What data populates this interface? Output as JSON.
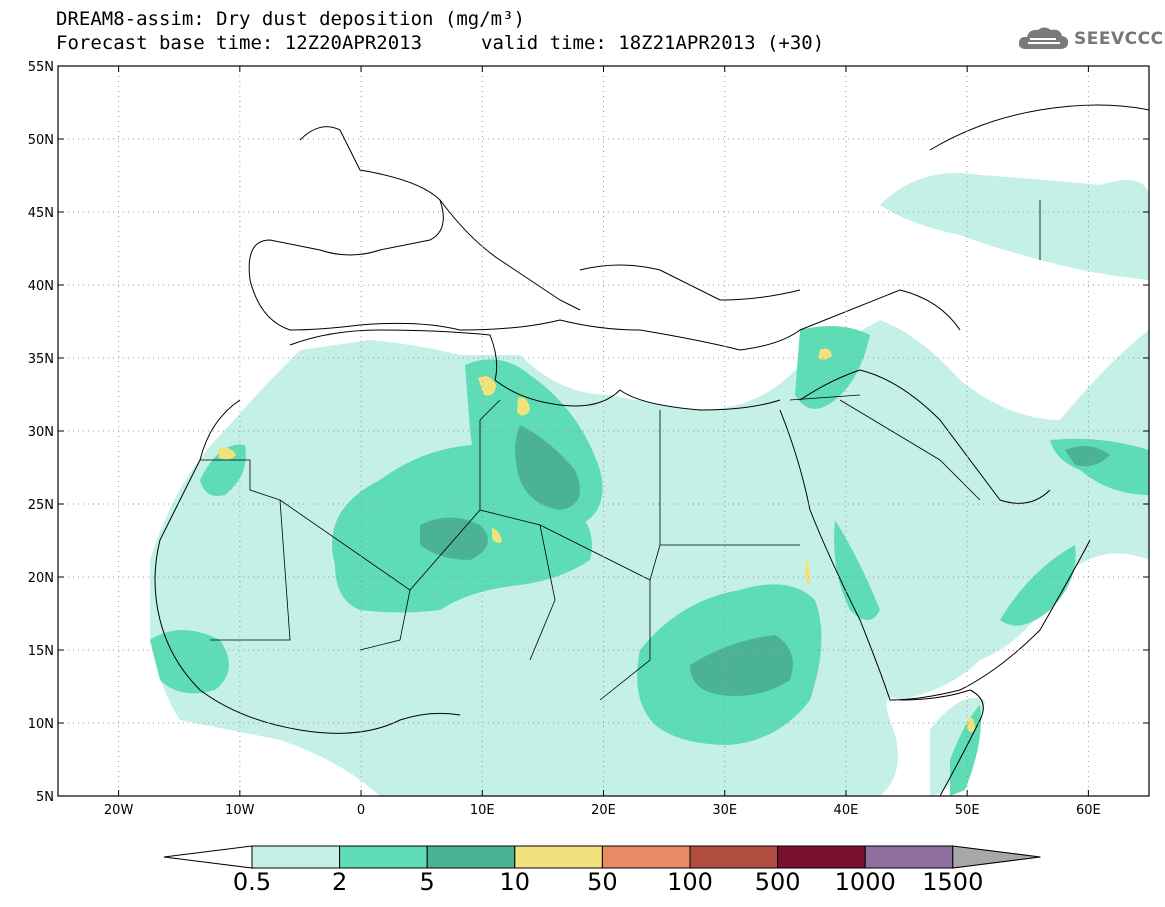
{
  "header": {
    "line1": "DREAM8-assim: Dry dust deposition (mg/m³)",
    "base_time": "Forecast base time: 12Z20APR2013",
    "valid_time": "valid time: 18Z21APR2013 (+30)"
  },
  "logo": {
    "text": "SEEVCCC",
    "icon": "cloud-icon"
  },
  "map": {
    "lon_range": [
      -25,
      65
    ],
    "lat_range": [
      5,
      55
    ],
    "lon_ticks": [
      "20W",
      "10W",
      "0",
      "10E",
      "20E",
      "30E",
      "40E",
      "50E",
      "60E"
    ],
    "lat_ticks": [
      "55N",
      "50N",
      "45N",
      "40N",
      "35N",
      "30N",
      "25N",
      "20N",
      "15N",
      "10N",
      "5N"
    ]
  },
  "colorbar": {
    "labels": [
      "0.5",
      "2",
      "5",
      "10",
      "50",
      "100",
      "500",
      "1000",
      "1500"
    ],
    "colors": [
      "#c4f0e8",
      "#5edcb5",
      "#4bb393",
      "#f2e27e",
      "#e88c66",
      "#b04c40",
      "#7a1030",
      "#8f6ea0",
      "#a8a8a8"
    ]
  }
}
